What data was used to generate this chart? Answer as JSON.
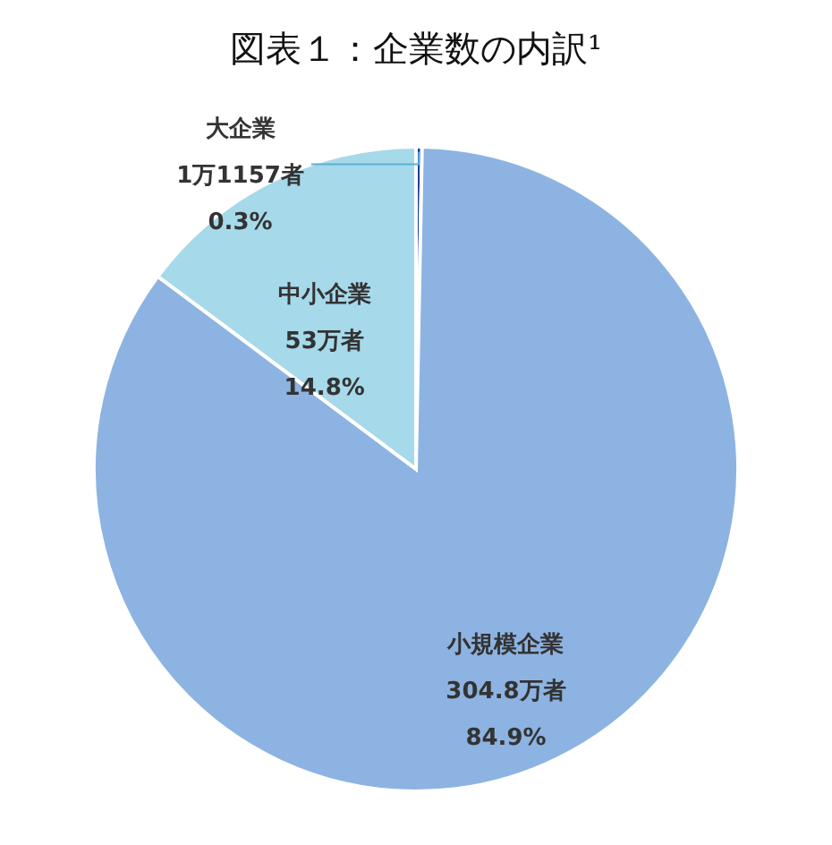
{
  "chart_data": {
    "type": "pie",
    "title": "図表１：企業数の内訳¹",
    "categories": [
      "大企業",
      "小規模企業",
      "中小企業"
    ],
    "values": [
      0.3,
      84.9,
      14.8
    ],
    "colors": [
      "#1f3f9a",
      "#8db3e2",
      "#a6d9ea"
    ],
    "value_labels": [
      "1万1157者\n0.3%",
      "304.8万者\n84.9%",
      "53万者\n14.8%"
    ]
  }
}
